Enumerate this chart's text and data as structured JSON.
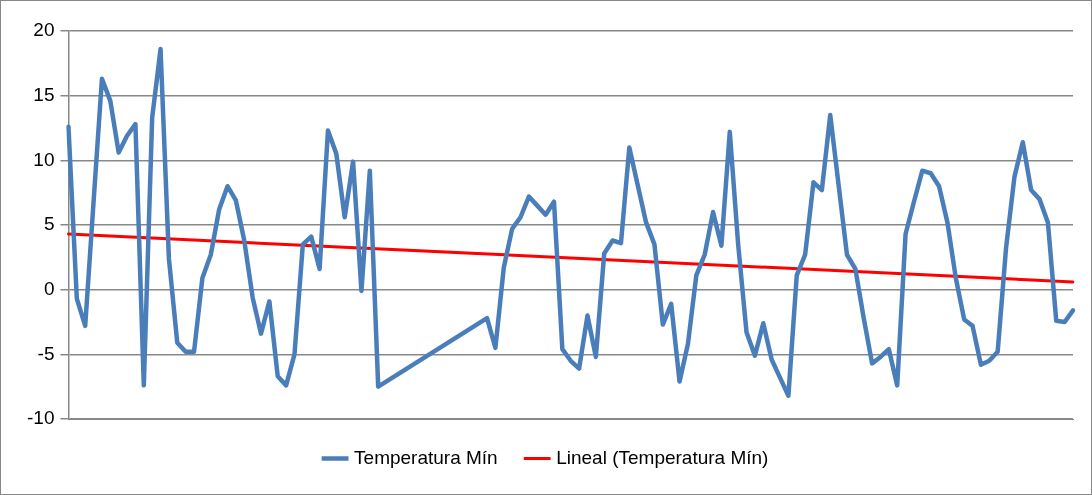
{
  "chart_data": {
    "type": "line",
    "categories": [
      null,
      null,
      null,
      null,
      null,
      null,
      null,
      null,
      null,
      null,
      null,
      null,
      null,
      null,
      null,
      null,
      null,
      null,
      null,
      null,
      null,
      null,
      null,
      null,
      null,
      null,
      null,
      null,
      null,
      null,
      null,
      null,
      null,
      null,
      null,
      null,
      null,
      null,
      null,
      null,
      null,
      null,
      null,
      null,
      null,
      null,
      null,
      null,
      null,
      null,
      null,
      null,
      null,
      null,
      null,
      null,
      null,
      null,
      null,
      null,
      null,
      null,
      null,
      null,
      null,
      null,
      null,
      null,
      null,
      null,
      null,
      null,
      null,
      null,
      null,
      null,
      null,
      null,
      null,
      null,
      null,
      null,
      null,
      null,
      null,
      null,
      null,
      null,
      null,
      null,
      null,
      null,
      null,
      null,
      null,
      null,
      null,
      null,
      null,
      null,
      null,
      null,
      null,
      null,
      null,
      null,
      null,
      null,
      null,
      null,
      null,
      null,
      null,
      null,
      null,
      null,
      null,
      null,
      null,
      null,
      null
    ],
    "series": [
      {
        "name": "Temperatura Mín",
        "color": "#4a7ebb",
        "values": [
          12.6,
          -0.7,
          -2.8,
          6.8,
          16.3,
          14.6,
          10.6,
          11.9,
          12.8,
          -7.4,
          13.3,
          18.6,
          2.4,
          -4.1,
          -4.8,
          -4.8,
          0.9,
          2.7,
          6.2,
          8.0,
          6.9,
          3.8,
          -0.6,
          -3.4,
          -0.9,
          -6.7,
          -7.4,
          -5.0,
          3.5,
          4.1,
          1.6,
          12.3,
          10.5,
          5.6,
          9.9,
          -0.1,
          9.2,
          -7.5,
          null,
          null,
          null,
          null,
          null,
          null,
          null,
          null,
          null,
          null,
          null,
          null,
          -2.2,
          -4.5,
          1.7,
          4.7,
          5.6,
          7.2,
          6.5,
          5.8,
          6.8,
          -4.6,
          -5.5,
          -6.1,
          -2.0,
          -5.2,
          2.8,
          3.8,
          3.6,
          11.0,
          8.1,
          5.2,
          3.5,
          -2.7,
          -1.1,
          -7.1,
          -4.2,
          1.1,
          2.7,
          6.0,
          3.4,
          12.2,
          3.5,
          -3.3,
          -5.1,
          -2.6,
          -5.4,
          -6.8,
          -8.2,
          1.1,
          2.7,
          8.3,
          7.7,
          13.5,
          8.1,
          2.7,
          1.6,
          -2.2,
          -5.7,
          -5.2,
          -4.6,
          -7.4,
          4.3,
          6.8,
          9.2,
          9.0,
          8.0,
          5.2,
          0.9,
          -2.3,
          -2.8,
          -5.8,
          -5.5,
          -4.8,
          3.2,
          8.7,
          11.4,
          7.7,
          7.0,
          5.2,
          -2.4,
          -2.5,
          -1.6
        ]
      },
      {
        "name": "Lineal (Temperatura Mín)",
        "color": "#ff0000",
        "values": [
          4.3,
          null,
          null,
          null,
          null,
          null,
          null,
          null,
          null,
          null,
          null,
          null,
          null,
          null,
          null,
          null,
          null,
          null,
          null,
          null,
          null,
          null,
          null,
          null,
          null,
          null,
          null,
          null,
          null,
          null,
          null,
          null,
          null,
          null,
          null,
          null,
          null,
          null,
          null,
          null,
          null,
          null,
          null,
          null,
          null,
          null,
          null,
          null,
          null,
          null,
          null,
          null,
          null,
          null,
          null,
          null,
          null,
          null,
          null,
          null,
          null,
          null,
          null,
          null,
          null,
          null,
          null,
          null,
          null,
          null,
          null,
          null,
          null,
          null,
          null,
          null,
          null,
          null,
          null,
          null,
          null,
          null,
          null,
          null,
          null,
          null,
          null,
          null,
          null,
          null,
          null,
          null,
          null,
          null,
          null,
          null,
          null,
          null,
          null,
          null,
          null,
          null,
          null,
          null,
          null,
          null,
          null,
          null,
          null,
          null,
          null,
          null,
          null,
          null,
          null,
          null,
          null,
          null,
          null,
          null,
          0.6
        ]
      }
    ],
    "ylim": [
      -10,
      20
    ],
    "yticks": [
      -10,
      -5,
      0,
      5,
      10,
      15,
      20
    ],
    "grid": "y",
    "legend": "bottom",
    "marker": "none",
    "line_style": "solid",
    "tick_labels": "y"
  }
}
